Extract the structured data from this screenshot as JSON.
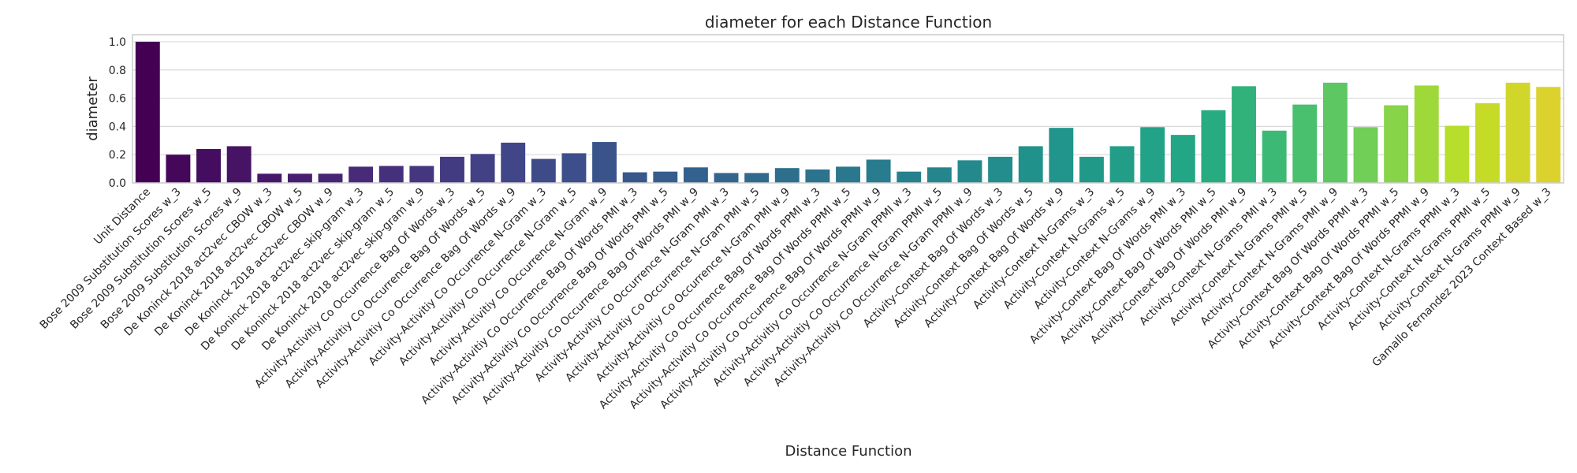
{
  "chart_data": {
    "type": "bar",
    "title": "diameter for each Distance Function",
    "xlabel": "Distance Function",
    "ylabel": "diameter",
    "ylim": [
      0,
      1.05
    ],
    "yticks": [
      "0.0",
      "0.2",
      "0.4",
      "0.6",
      "0.8",
      "1.0"
    ],
    "grid": true,
    "palette": "viridis",
    "categories": [
      "Unit Distance",
      "Bose 2009 Substitution Scores w_3",
      "Bose 2009 Substitution Scores w_5",
      "Bose 2009 Substitution Scores w_9",
      "De Koninck 2018 act2vec CBOW w_3",
      "De Koninck 2018 act2vec CBOW w_5",
      "De Koninck 2018 act2vec CBOW w_9",
      "De Koninck 2018 act2vec skip-gram w_3",
      "De Koninck 2018 act2vec skip-gram w_5",
      "De Koninck 2018 act2vec skip-gram w_9",
      "Activity-Activitiy Co Occurrence Bag Of Words w_3",
      "Activity-Activitiy Co Occurrence Bag Of Words w_5",
      "Activity-Activitiy Co Occurrence Bag Of Words w_9",
      "Activity-Activitiy Co Occurrence N-Gram w_3",
      "Activity-Activitiy Co Occurrence N-Gram w_5",
      "Activity-Activitiy Co Occurrence N-Gram w_9",
      "Activity-Activitiy Co Occurrence Bag Of Words PMI w_3",
      "Activity-Activitiy Co Occurrence Bag Of Words PMI w_5",
      "Activity-Activitiy Co Occurrence Bag Of Words PMI w_9",
      "Activity-Activitiy Co Occurrence N-Gram PMI w_3",
      "Activity-Activitiy Co Occurrence N-Gram PMI w_5",
      "Activity-Activitiy Co Occurrence N-Gram PMI w_9",
      "Activity-Activitiy Co Occurrence Bag Of Words PPMI w_3",
      "Activity-Activitiy Co Occurrence Bag Of Words PPMI w_5",
      "Activity-Activitiy Co Occurrence Bag Of Words PPMI w_9",
      "Activity-Activitiy Co Occurrence N-Gram PPMI w_3",
      "Activity-Activitiy Co Occurrence N-Gram PPMI w_5",
      "Activity-Activitiy Co Occurrence N-Gram PPMI w_9",
      "Activity-Context Bag Of Words w_3",
      "Activity-Context Bag Of Words w_5",
      "Activity-Context Bag Of Words w_9",
      "Activity-Context N-Grams w_3",
      "Activity-Context N-Grams w_5",
      "Activity-Context N-Grams w_9",
      "Activity-Context Bag Of Words PMI w_3",
      "Activity-Context Bag Of Words PMI w_5",
      "Activity-Context Bag Of Words PMI w_9",
      "Activity-Context N-Grams PMI w_3",
      "Activity-Context N-Grams PMI w_5",
      "Activity-Context N-Grams PMI w_9",
      "Activity-Context Bag Of Words PPMI w_3",
      "Activity-Context Bag Of Words PPMI w_5",
      "Activity-Context Bag Of Words PPMI w_9",
      "Activity-Context N-Grams PPMI w_3",
      "Activity-Context N-Grams PPMI w_5",
      "Activity-Context N-Grams PPMI w_9",
      "Gamallo Fernandez 2023 Context Based w_3"
    ],
    "values": [
      1.0,
      0.2,
      0.24,
      0.26,
      0.065,
      0.065,
      0.065,
      0.115,
      0.12,
      0.12,
      0.185,
      0.205,
      0.285,
      0.17,
      0.21,
      0.29,
      0.075,
      0.08,
      0.11,
      0.07,
      0.07,
      0.105,
      0.095,
      0.115,
      0.165,
      0.08,
      0.11,
      0.16,
      0.185,
      0.26,
      0.39,
      0.185,
      0.26,
      0.395,
      0.34,
      0.515,
      0.685,
      0.37,
      0.555,
      0.71,
      0.395,
      0.55,
      0.69,
      0.405,
      0.565,
      0.71,
      0.68
    ]
  }
}
